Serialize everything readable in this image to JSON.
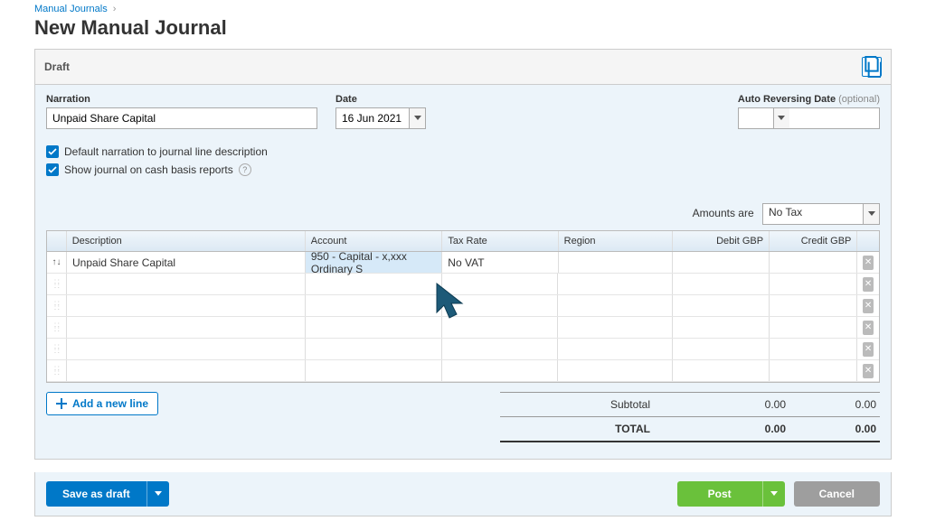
{
  "breadcrumb": {
    "parent": "Manual Journals"
  },
  "page_title": "New Manual Journal",
  "status": "Draft",
  "form": {
    "narration_label": "Narration",
    "narration_value": "Unpaid Share Capital",
    "date_label": "Date",
    "date_value": "16 Jun 2021",
    "auto_rev_label": "Auto Reversing Date",
    "auto_rev_optional": "(optional)",
    "auto_rev_value": "",
    "chk1": "Default narration to journal line description",
    "chk2": "Show journal on cash basis reports",
    "amounts_label": "Amounts are",
    "amounts_value": "No Tax"
  },
  "grid": {
    "headers": {
      "description": "Description",
      "account": "Account",
      "tax_rate": "Tax Rate",
      "region": "Region",
      "debit": "Debit GBP",
      "credit": "Credit GBP"
    },
    "rows": [
      {
        "description": "Unpaid Share Capital",
        "account": "950 - Capital - x,xxx Ordinary S",
        "tax_rate": "No VAT",
        "region": "",
        "debit": "",
        "credit": ""
      },
      {
        "description": "",
        "account": "",
        "tax_rate": "",
        "region": "",
        "debit": "",
        "credit": ""
      },
      {
        "description": "",
        "account": "",
        "tax_rate": "",
        "region": "",
        "debit": "",
        "credit": ""
      },
      {
        "description": "",
        "account": "",
        "tax_rate": "",
        "region": "",
        "debit": "",
        "credit": ""
      },
      {
        "description": "",
        "account": "",
        "tax_rate": "",
        "region": "",
        "debit": "",
        "credit": ""
      },
      {
        "description": "",
        "account": "",
        "tax_rate": "",
        "region": "",
        "debit": "",
        "credit": ""
      }
    ]
  },
  "add_line": "Add a new line",
  "totals": {
    "subtotal_label": "Subtotal",
    "subtotal_debit": "0.00",
    "subtotal_credit": "0.00",
    "total_label": "TOTAL",
    "total_debit": "0.00",
    "total_credit": "0.00"
  },
  "actions": {
    "save_draft": "Save as draft",
    "post": "Post",
    "cancel": "Cancel"
  },
  "colors": {
    "link": "#0078c8",
    "panel_bg": "#ecf4fa",
    "green": "#6ac13b",
    "grey": "#9e9e9e",
    "cursor": "#1d5a78"
  }
}
